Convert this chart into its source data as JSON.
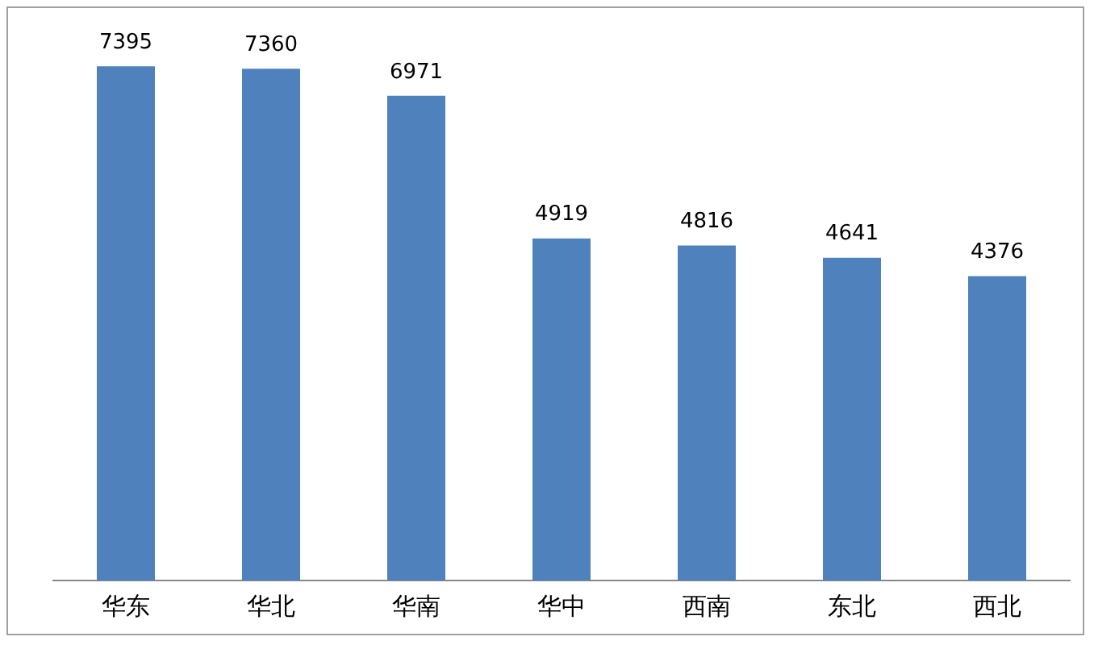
{
  "chart_data": {
    "type": "bar",
    "categories": [
      "华东",
      "华北",
      "华南",
      "华中",
      "西南",
      "东北",
      "西北"
    ],
    "values": [
      7395,
      7360,
      6971,
      4919,
      4816,
      4641,
      4376
    ],
    "color": "#4f81bd",
    "data_labels": true,
    "grid": false,
    "legend": false
  }
}
